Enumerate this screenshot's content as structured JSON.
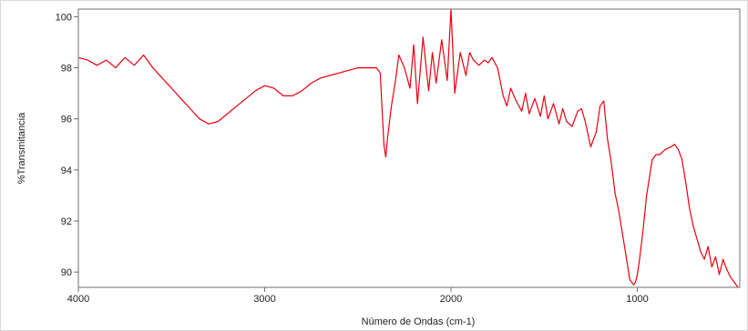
{
  "chart_data": {
    "type": "line",
    "title": "",
    "xlabel": "Número de Ondas (cm-1)",
    "ylabel": "%Transmitancia",
    "xlim": [
      4000,
      450
    ],
    "ylim": [
      89.4,
      100.3
    ],
    "x_reversed": true,
    "grid": false,
    "legend": "none",
    "xticks": [
      4000,
      3000,
      2000,
      1000
    ],
    "yticks": [
      90,
      92,
      94,
      96,
      98,
      100
    ],
    "series": [
      {
        "color": "#e8000f",
        "x": [
          4000,
          3950,
          3900,
          3850,
          3800,
          3750,
          3700,
          3650,
          3600,
          3550,
          3500,
          3450,
          3400,
          3350,
          3300,
          3250,
          3200,
          3150,
          3100,
          3050,
          3000,
          2950,
          2900,
          2850,
          2800,
          2750,
          2700,
          2650,
          2600,
          2550,
          2500,
          2450,
          2400,
          2380,
          2360,
          2350,
          2340,
          2320,
          2300,
          2280,
          2250,
          2220,
          2200,
          2180,
          2150,
          2120,
          2100,
          2080,
          2050,
          2020,
          2000,
          1980,
          1950,
          1920,
          1900,
          1880,
          1850,
          1820,
          1800,
          1780,
          1750,
          1720,
          1700,
          1680,
          1650,
          1620,
          1600,
          1580,
          1550,
          1520,
          1500,
          1480,
          1450,
          1420,
          1400,
          1380,
          1350,
          1320,
          1300,
          1280,
          1250,
          1220,
          1200,
          1180,
          1160,
          1140,
          1120,
          1100,
          1080,
          1060,
          1040,
          1020,
          1010,
          1000,
          990,
          970,
          950,
          920,
          900,
          880,
          850,
          820,
          800,
          780,
          760,
          740,
          720,
          700,
          680,
          660,
          640,
          620,
          600,
          580,
          560,
          540,
          520,
          500,
          480,
          460
        ],
        "y": [
          98.4,
          98.3,
          98.1,
          98.3,
          98.0,
          98.4,
          98.1,
          98.5,
          98.0,
          97.6,
          97.2,
          96.8,
          96.4,
          96.0,
          95.8,
          95.9,
          96.2,
          96.5,
          96.8,
          97.1,
          97.3,
          97.2,
          96.9,
          96.9,
          97.1,
          97.4,
          97.6,
          97.7,
          97.8,
          97.9,
          98.0,
          98.0,
          98.0,
          97.8,
          95.0,
          94.5,
          95.3,
          96.5,
          97.4,
          98.5,
          98.0,
          97.2,
          98.9,
          96.6,
          99.2,
          97.1,
          98.6,
          97.4,
          99.1,
          97.5,
          100.3,
          97.0,
          98.6,
          97.7,
          98.6,
          98.3,
          98.1,
          98.3,
          98.2,
          98.4,
          98.0,
          96.9,
          96.5,
          97.2,
          96.7,
          96.3,
          97.0,
          96.2,
          96.8,
          96.1,
          96.9,
          96.0,
          96.6,
          95.8,
          96.4,
          95.9,
          95.7,
          96.3,
          96.4,
          95.9,
          94.9,
          95.5,
          96.5,
          96.7,
          95.2,
          94.3,
          93.1,
          92.4,
          91.5,
          90.6,
          89.7,
          89.5,
          89.6,
          89.9,
          90.4,
          91.6,
          93.0,
          94.4,
          94.6,
          94.6,
          94.8,
          94.9,
          95.0,
          94.8,
          94.4,
          93.5,
          92.5,
          91.8,
          91.3,
          90.8,
          90.5,
          91.0,
          90.2,
          90.6,
          89.9,
          90.5,
          90.1,
          89.8,
          89.6,
          89.4
        ]
      }
    ]
  }
}
